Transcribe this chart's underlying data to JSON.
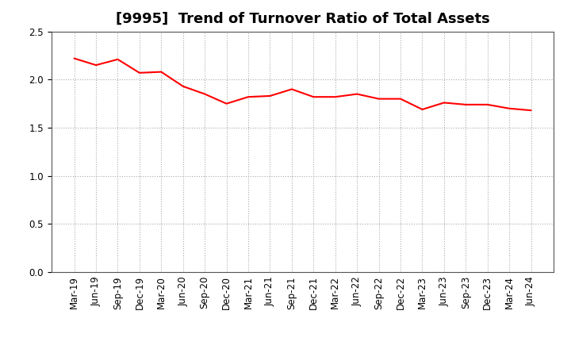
{
  "title": "[9995]  Trend of Turnover Ratio of Total Assets",
  "x_labels": [
    "Mar-19",
    "Jun-19",
    "Sep-19",
    "Dec-19",
    "Mar-20",
    "Jun-20",
    "Sep-20",
    "Dec-20",
    "Mar-21",
    "Jun-21",
    "Sep-21",
    "Dec-21",
    "Mar-22",
    "Jun-22",
    "Sep-22",
    "Dec-22",
    "Mar-23",
    "Jun-23",
    "Sep-23",
    "Dec-23",
    "Mar-24",
    "Jun-24"
  ],
  "values": [
    2.22,
    2.15,
    2.21,
    2.07,
    2.08,
    1.93,
    1.85,
    1.75,
    1.82,
    1.83,
    1.9,
    1.82,
    1.82,
    1.85,
    1.8,
    1.8,
    1.69,
    1.76,
    1.74,
    1.74,
    1.7,
    1.68
  ],
  "line_color": "#FF0000",
  "line_width": 1.5,
  "ylim": [
    0.0,
    2.5
  ],
  "yticks": [
    0.0,
    0.5,
    1.0,
    1.5,
    2.0,
    2.5
  ],
  "background_color": "#ffffff",
  "grid_color": "#aaaaaa",
  "title_fontsize": 13,
  "tick_fontsize": 8.5
}
